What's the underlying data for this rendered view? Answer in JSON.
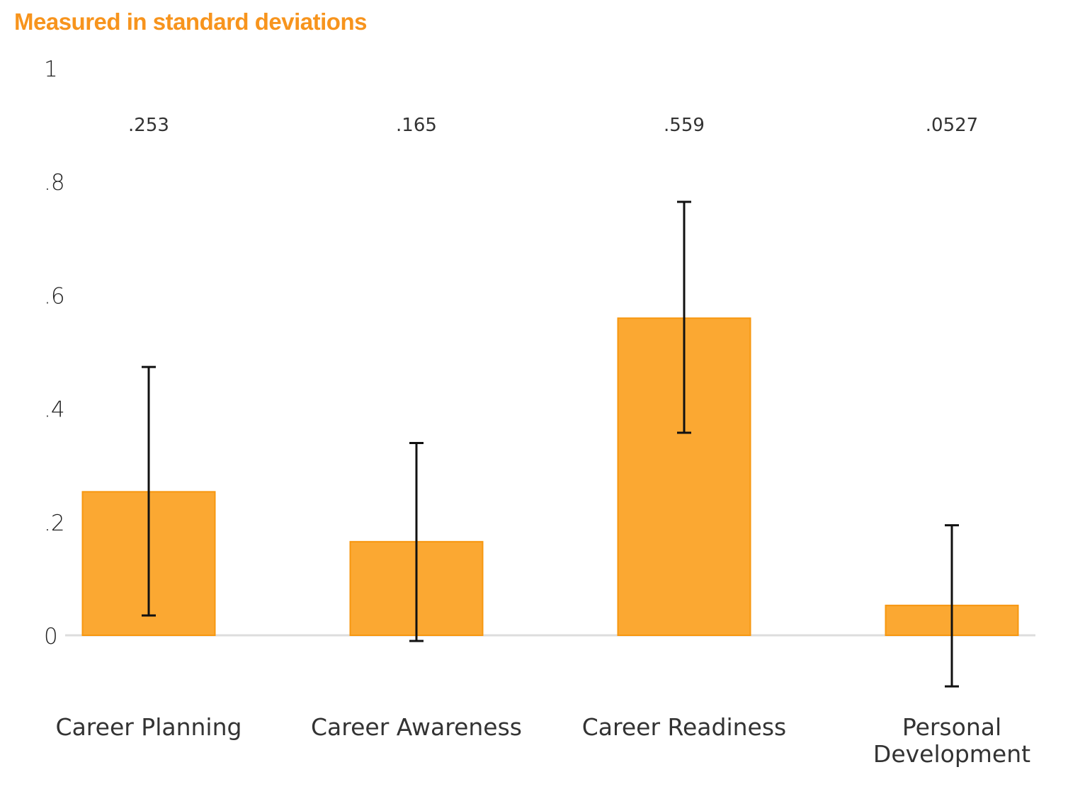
{
  "chart_data": {
    "type": "bar",
    "title": "Measured in standard deviations",
    "xlabel": "",
    "ylabel": "",
    "ylim": [
      -0.12,
      1
    ],
    "yticks": [
      0,
      0.2,
      0.4,
      0.6,
      0.8,
      1
    ],
    "ytick_labels": [
      "0",
      ".2",
      ".4",
      ".6",
      ".8",
      "1"
    ],
    "grid": false,
    "categories": [
      [
        "Career Planning"
      ],
      [
        "Career Awareness"
      ],
      [
        "Career Readiness"
      ],
      [
        "Personal",
        "Development"
      ]
    ],
    "values": [
      0.253,
      0.165,
      0.559,
      0.0527
    ],
    "value_labels": [
      ".253",
      ".165",
      ".559",
      ".0527"
    ],
    "error_bars": [
      {
        "low": 0.035,
        "high": 0.473
      },
      {
        "low": -0.01,
        "high": 0.339
      },
      {
        "low": 0.357,
        "high": 0.764
      },
      {
        "low": -0.09,
        "high": 0.194
      }
    ],
    "colors": {
      "title": "#F7941D",
      "bar_fill": "#FBA832",
      "bar_stroke": "#F7970F",
      "error_bar": "#111111",
      "baseline": "#DDDDDD"
    }
  }
}
